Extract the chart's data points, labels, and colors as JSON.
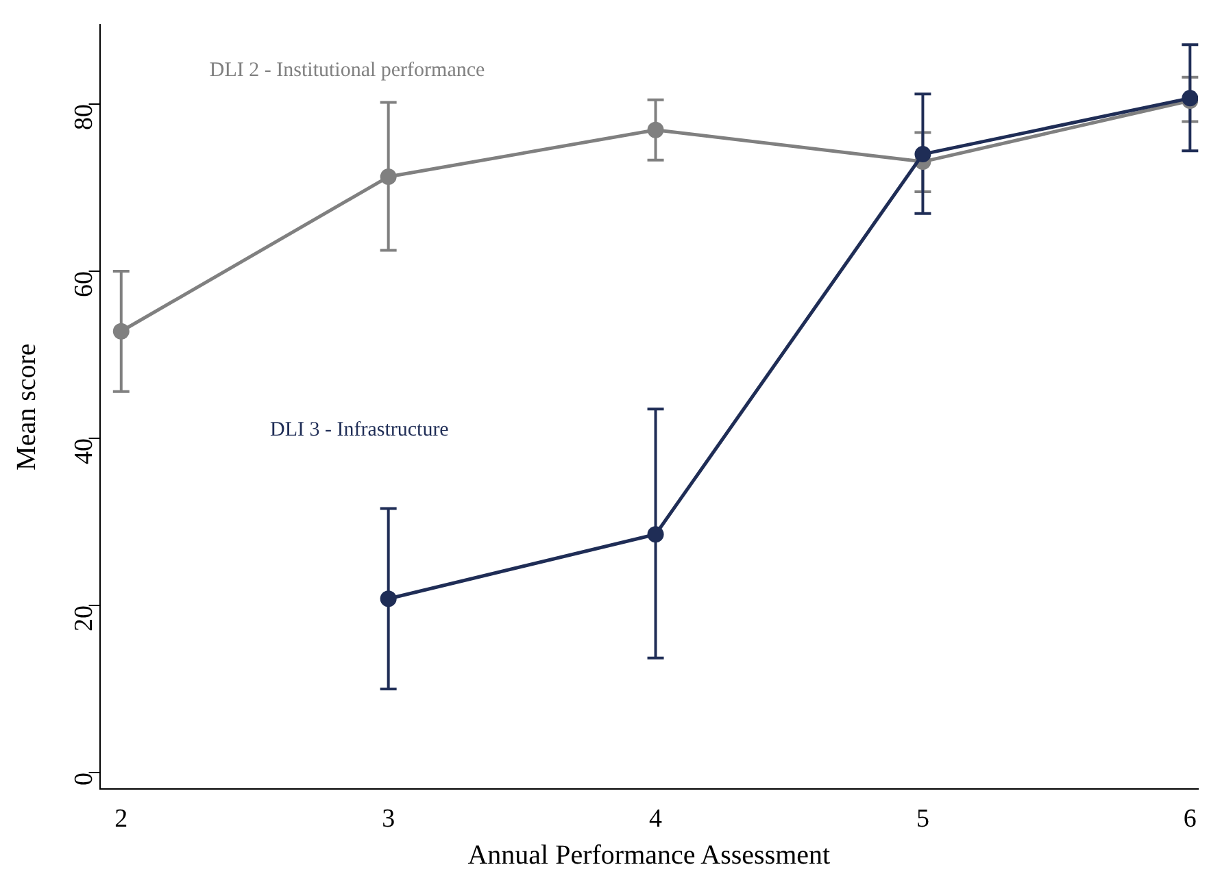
{
  "chart_data": {
    "type": "line",
    "xlabel": "Annual Performance Assessment",
    "ylabel": "Mean score",
    "x": [
      2,
      3,
      4,
      5,
      6
    ],
    "series": [
      {
        "name": "DLI 2 - Institutional performance",
        "color": "#808080",
        "values": [
          52.8,
          71.3,
          76.9,
          73.1,
          80.4
        ],
        "errors": [
          [
            45.6,
            60.0
          ],
          [
            62.5,
            80.2
          ],
          [
            73.3,
            80.5
          ],
          [
            69.5,
            76.6
          ],
          [
            77.9,
            83.2
          ]
        ]
      },
      {
        "name": "DLI 3 - Infrastructure",
        "color": "#1f2d56",
        "values": [
          null,
          20.8,
          28.5,
          74.0,
          80.7
        ],
        "errors": [
          null,
          [
            10.0,
            31.6
          ],
          [
            13.7,
            43.5
          ],
          [
            66.9,
            81.2
          ],
          [
            74.4,
            87.1
          ]
        ]
      }
    ],
    "xlim": [
      1.92,
      6.03
    ],
    "xticks": [
      2,
      3,
      4,
      5,
      6
    ],
    "ylim": [
      -2,
      89.5
    ],
    "yticks": [
      0,
      20,
      40,
      60,
      80
    ],
    "grid": false,
    "legend": false,
    "marker": "circle",
    "line_style": "solid"
  }
}
